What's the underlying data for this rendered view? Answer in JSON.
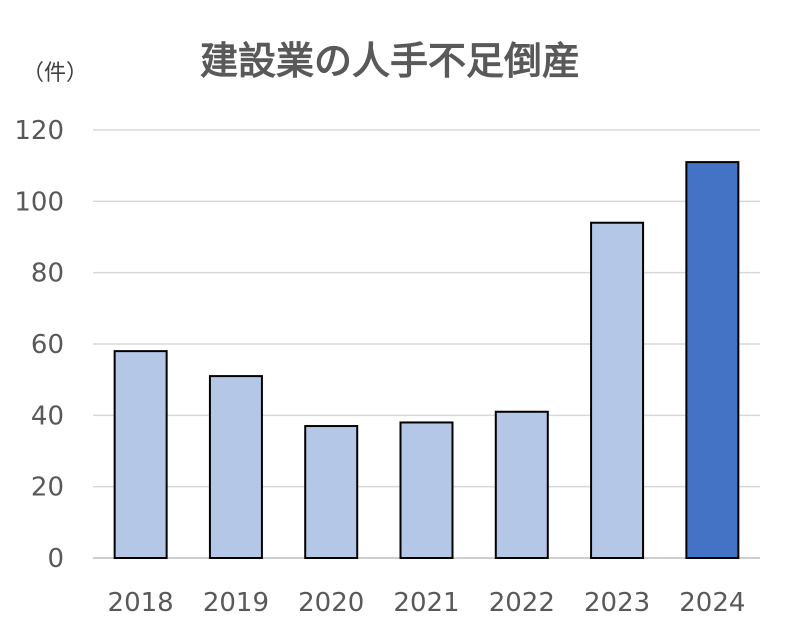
{
  "chart_data": {
    "type": "bar",
    "title": "建設業の人手不足倒産",
    "unit_label": "（件）",
    "categories": [
      "2018",
      "2019",
      "2020",
      "2021",
      "2022",
      "2023",
      "2024"
    ],
    "values": [
      58,
      51,
      37,
      38,
      41,
      94,
      111
    ],
    "ylim": [
      0,
      120
    ],
    "yticks": [
      0,
      20,
      40,
      60,
      80,
      100,
      120
    ],
    "grid": true,
    "legend": "none",
    "colors": {
      "bar": "#b4c7e7",
      "highlight": "#4472c4",
      "highlight_index": 6
    }
  }
}
